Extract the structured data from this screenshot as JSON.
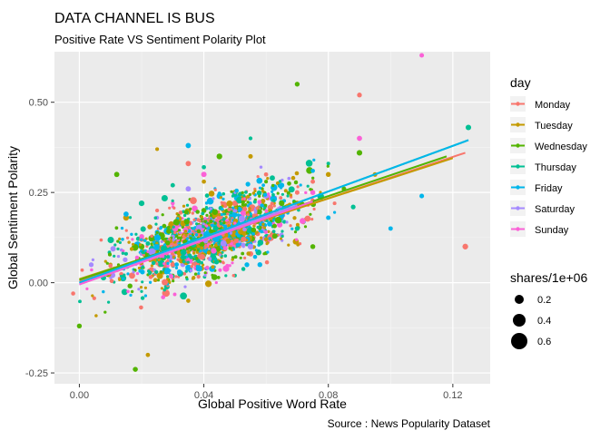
{
  "chart_data": {
    "type": "scatter",
    "title": "DATA CHANNEL IS BUS",
    "subtitle": "Positive Rate VS Sentiment Polarity Plot",
    "caption": "Source : News Popularity Dataset",
    "xlabel": "Global Positive Word Rate",
    "ylabel": "Global Sentiment Polarity",
    "xlim": [
      -0.008,
      0.132
    ],
    "ylim": [
      -0.28,
      0.64
    ],
    "x_ticks": [
      0.0,
      0.04,
      0.08,
      0.12
    ],
    "x_tick_labels": [
      "0.00",
      "0.04",
      "0.08",
      "0.12"
    ],
    "y_ticks": [
      -0.25,
      0.0,
      0.25,
      0.5
    ],
    "y_tick_labels": [
      "-0.25",
      "0.00",
      "0.25",
      "0.50"
    ],
    "grid": true,
    "background": "#ebebeb",
    "legend_position": "right",
    "color_legend": {
      "title": "day",
      "entries": [
        {
          "label": "Monday",
          "color": "#F8766D"
        },
        {
          "label": "Tuesday",
          "color": "#C49A00"
        },
        {
          "label": "Wednesday",
          "color": "#53B400"
        },
        {
          "label": "Thursday",
          "color": "#00C094"
        },
        {
          "label": "Friday",
          "color": "#00B6EB"
        },
        {
          "label": "Saturday",
          "color": "#A58AFF"
        },
        {
          "label": "Sunday",
          "color": "#FB61D7"
        }
      ]
    },
    "size_legend": {
      "title": "shares/1e+06",
      "entries": [
        {
          "label": "0.2",
          "value": 0.2
        },
        {
          "label": "0.4",
          "value": 0.4
        },
        {
          "label": "0.6",
          "value": 0.6
        }
      ]
    },
    "series": [
      {
        "name": "Monday",
        "color": "#F8766D",
        "trend": {
          "x": [
            0.0,
            0.124
          ],
          "y": [
            0.005,
            0.36
          ]
        },
        "points": [
          [
            0.02,
            0.12
          ],
          [
            0.05,
            0.22
          ],
          [
            0.082,
            0.22
          ],
          [
            0.09,
            0.52
          ],
          [
            0.124,
            0.1
          ],
          [
            0.03,
            0.05
          ],
          [
            0.06,
            0.3
          ],
          [
            -0.002,
            -0.03
          ],
          [
            0.045,
            0.16
          ],
          [
            0.07,
            0.25
          ],
          [
            0.035,
            0.33
          ],
          [
            0.055,
            0.08
          ],
          [
            0.075,
            0.28
          ],
          [
            0.025,
            0.2
          ],
          [
            0.065,
            0.18
          ]
        ]
      },
      {
        "name": "Tuesday",
        "color": "#C49A00",
        "trend": {
          "x": [
            0.0,
            0.12
          ],
          "y": [
            0.01,
            0.345
          ]
        },
        "points": [
          [
            0.03,
            0.15
          ],
          [
            0.01,
            0.05
          ],
          [
            0.05,
            0.25
          ],
          [
            0.08,
            0.3
          ],
          [
            0.025,
            0.37
          ],
          [
            0.045,
            0.08
          ],
          [
            0.07,
            0.22
          ],
          [
            0.015,
            0.18
          ],
          [
            0.035,
            -0.05
          ],
          [
            0.095,
            0.3
          ],
          [
            0.06,
            0.12
          ],
          [
            0.04,
            0.28
          ],
          [
            0.022,
            -0.2
          ],
          [
            0.055,
            0.35
          ]
        ]
      },
      {
        "name": "Wednesday",
        "color": "#53B400",
        "trend": {
          "x": [
            0.0,
            0.118
          ],
          "y": [
            0.008,
            0.35
          ]
        },
        "points": [
          [
            0.04,
            0.2
          ],
          [
            0.02,
            0.1
          ],
          [
            0.06,
            0.28
          ],
          [
            0.07,
            0.55
          ],
          [
            0.012,
            0.3
          ],
          [
            0.05,
            0.14
          ],
          [
            0.085,
            0.26
          ],
          [
            0.03,
            0.02
          ],
          [
            0.045,
            0.35
          ],
          [
            0.0,
            -0.12
          ],
          [
            0.065,
            0.22
          ],
          [
            0.075,
            0.1
          ],
          [
            0.018,
            -0.24
          ],
          [
            0.09,
            0.36
          ]
        ]
      },
      {
        "name": "Thursday",
        "color": "#00C094",
        "trend": {
          "x": [
            0.0,
            0.125
          ],
          "y": [
            0.0,
            0.395
          ]
        },
        "points": [
          [
            0.045,
            0.18
          ],
          [
            0.062,
            0.29
          ],
          [
            0.035,
            0.06
          ],
          [
            0.08,
            0.33
          ],
          [
            0.02,
            0.22
          ],
          [
            0.055,
            0.4
          ],
          [
            0.07,
            0.15
          ],
          [
            0.125,
            0.43
          ],
          [
            0.03,
            0.27
          ],
          [
            0.05,
            0.02
          ],
          [
            0.088,
            0.21
          ],
          [
            0.015,
            0.08
          ],
          [
            0.04,
            0.32
          ]
        ]
      },
      {
        "name": "Friday",
        "color": "#00B6EB",
        "trend": {
          "x": [
            0.0,
            0.125
          ],
          "y": [
            0.0,
            0.395
          ]
        },
        "points": [
          [
            0.05,
            0.2
          ],
          [
            0.04,
            0.1
          ],
          [
            0.065,
            0.27
          ],
          [
            0.025,
            0.14
          ],
          [
            0.11,
            0.24
          ],
          [
            0.08,
            0.18
          ],
          [
            0.035,
            0.38
          ],
          [
            0.058,
            0.05
          ],
          [
            0.015,
            0.19
          ],
          [
            0.075,
            0.31
          ],
          [
            0.045,
            0.24
          ],
          [
            0.1,
            0.15
          ],
          [
            0.028,
            0.03
          ]
        ]
      },
      {
        "name": "Saturday",
        "color": "#A58AFF",
        "trend": {
          "x": [
            0.0,
            0.07
          ],
          "y": [
            -0.005,
            0.215
          ]
        },
        "points": [
          [
            0.03,
            0.12
          ],
          [
            0.05,
            0.2
          ],
          [
            0.02,
            0.08
          ],
          [
            0.06,
            0.24
          ],
          [
            0.04,
            0.16
          ],
          [
            0.035,
            0.26
          ],
          [
            0.055,
            0.1
          ],
          [
            0.025,
            0.18
          ]
        ]
      },
      {
        "name": "Sunday",
        "color": "#FB61D7",
        "trend": {
          "x": [
            0.0,
            0.075
          ],
          "y": [
            -0.005,
            0.225
          ]
        },
        "points": [
          [
            0.11,
            0.63
          ],
          [
            0.045,
            0.18
          ],
          [
            0.09,
            0.4
          ],
          [
            0.03,
            0.22
          ],
          [
            0.06,
            0.14
          ],
          [
            0.04,
            0.3
          ],
          [
            0.075,
            0.25
          ],
          [
            0.02,
            0.05
          ],
          [
            0.052,
            0.2
          ]
        ]
      }
    ]
  }
}
